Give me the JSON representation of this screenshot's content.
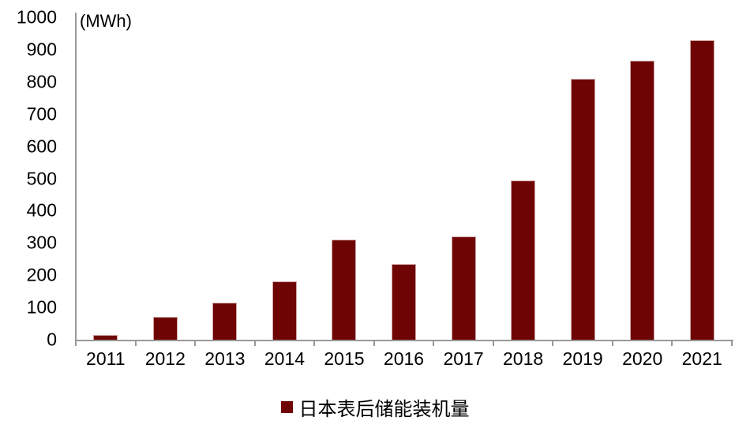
{
  "chart_data": {
    "type": "bar",
    "title": "",
    "unit_label": "(MWh)",
    "categories": [
      "2011",
      "2012",
      "2013",
      "2014",
      "2015",
      "2016",
      "2017",
      "2018",
      "2019",
      "2020",
      "2021"
    ],
    "series": [
      {
        "name": "日本表后储能装机量",
        "values": [
          15,
          70,
          115,
          180,
          310,
          235,
          320,
          495,
          810,
          865,
          930
        ]
      }
    ],
    "y_ticks": [
      "0",
      "100",
      "200",
      "300",
      "400",
      "500",
      "600",
      "700",
      "800",
      "900",
      "1000"
    ],
    "ylim": [
      0,
      1000
    ],
    "xlabel": "",
    "ylabel": "(MWh)",
    "grid": false,
    "legend_position": "bottom",
    "colors": {
      "bar": "#6e0404",
      "bar_edge": "#cfa3a3",
      "axis": "#999999",
      "text": "#000000"
    }
  }
}
